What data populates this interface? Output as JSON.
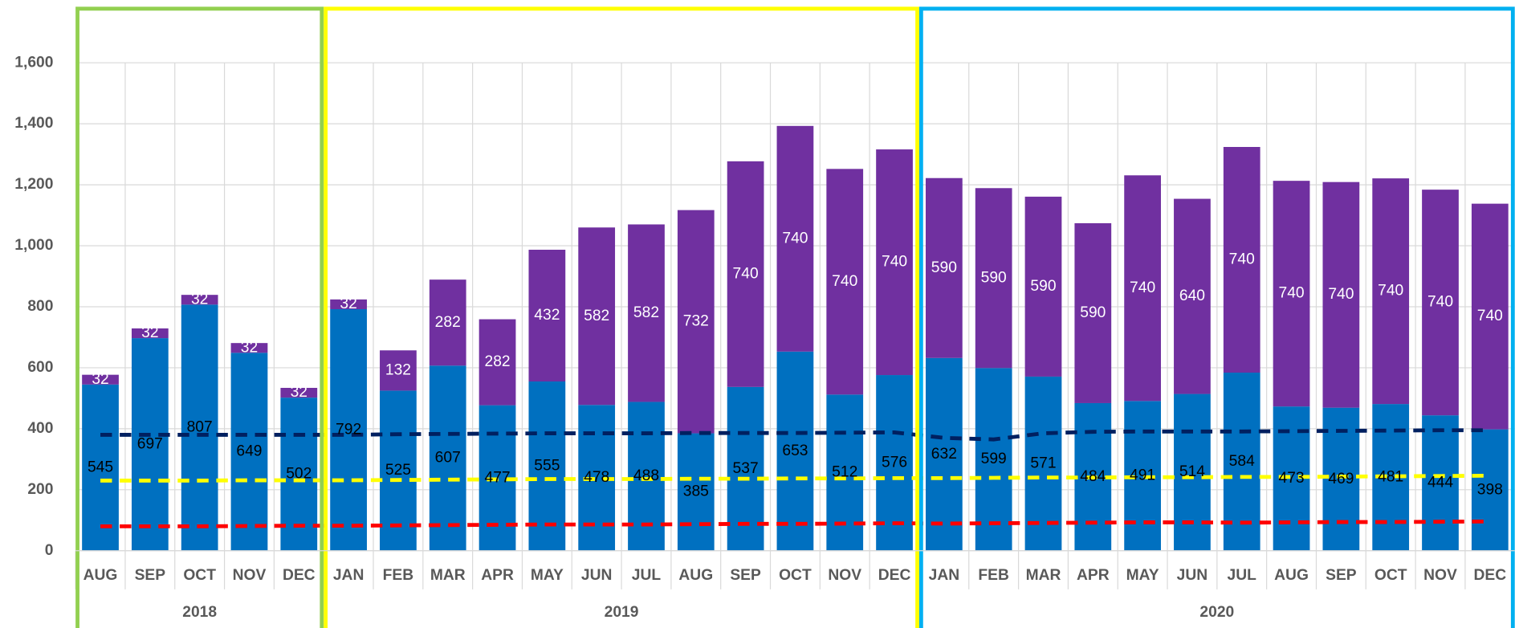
{
  "chart_data": {
    "type": "stacked-bar-line",
    "categories": [
      "AUG",
      "SEP",
      "OCT",
      "NOV",
      "DEC",
      "JAN",
      "FEB",
      "MAR",
      "APR",
      "MAY",
      "JUN",
      "JUL",
      "AUG",
      "SEP",
      "OCT",
      "NOV",
      "DEC",
      "JAN",
      "FEB",
      "MAR",
      "APR",
      "MAY",
      "JUN",
      "JUL",
      "AUG",
      "SEP",
      "OCT",
      "NOV",
      "DEC"
    ],
    "year_groups": [
      {
        "label": "2018",
        "count": 5,
        "color": "#92d050"
      },
      {
        "label": "2019",
        "count": 12,
        "color": "#ffff00"
      },
      {
        "label": "2020",
        "count": 12,
        "color": "#00b0f0"
      }
    ],
    "series": [
      {
        "kind": "bar",
        "color": "#0070c0",
        "label_color": "#000000",
        "values": [
          545,
          697,
          807,
          649,
          502,
          792,
          525,
          607,
          477,
          555,
          478,
          488,
          385,
          537,
          653,
          512,
          576,
          632,
          599,
          571,
          484,
          491,
          514,
          584,
          473,
          469,
          481,
          444,
          398
        ]
      },
      {
        "kind": "bar",
        "color": "#7030a0",
        "label_color": "#ffffff",
        "values": [
          32,
          32,
          32,
          32,
          32,
          32,
          132,
          282,
          282,
          432,
          582,
          582,
          732,
          740,
          740,
          740,
          740,
          590,
          590,
          590,
          590,
          740,
          640,
          740,
          740,
          740,
          740,
          740,
          740
        ]
      },
      {
        "kind": "line",
        "color": "#002060",
        "values": [
          380,
          380,
          380,
          380,
          380,
          380,
          382,
          383,
          384,
          385,
          385,
          385,
          386,
          386,
          386,
          387,
          388,
          370,
          365,
          385,
          390,
          391,
          391,
          391,
          392,
          393,
          394,
          395,
          395
        ]
      },
      {
        "kind": "line",
        "color": "#ffff00",
        "values": [
          230,
          230,
          230,
          231,
          231,
          231,
          232,
          233,
          234,
          235,
          235,
          235,
          236,
          236,
          237,
          237,
          238,
          238,
          239,
          240,
          240,
          241,
          241,
          242,
          242,
          243,
          244,
          245,
          246
        ]
      },
      {
        "kind": "line",
        "color": "#ff0000",
        "values": [
          80,
          80,
          80,
          81,
          82,
          82,
          83,
          84,
          85,
          86,
          86,
          86,
          87,
          88,
          88,
          89,
          90,
          89,
          90,
          91,
          92,
          93,
          93,
          92,
          93,
          94,
          94,
          95,
          96
        ]
      }
    ],
    "ylim": [
      0,
      1600
    ],
    "yticks": [
      0,
      200,
      400,
      600,
      800,
      {
        "value": 1000,
        "label": "1,000"
      },
      {
        "value": 1200,
        "label": "1,200"
      },
      {
        "value": 1400,
        "label": "1,400"
      },
      {
        "value": 1600,
        "label": "1,600"
      }
    ],
    "grid": true
  }
}
